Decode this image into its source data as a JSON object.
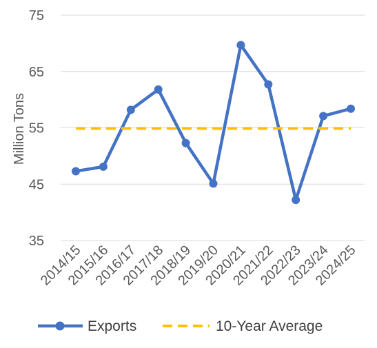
{
  "chart_data": {
    "type": "line",
    "title": "",
    "xlabel": "",
    "ylabel": "Million Tons",
    "ylim": [
      35,
      75
    ],
    "yticks": [
      35,
      45,
      55,
      65,
      75
    ],
    "grid": true,
    "legend_position": "bottom",
    "categories": [
      "2014/15",
      "2015/16",
      "2016/17",
      "2017/18",
      "2018/19",
      "2019/20",
      "2020/21",
      "2021/22",
      "2022/23",
      "2023/24",
      "2024/25"
    ],
    "series": [
      {
        "name": "Exports",
        "style": "solid-line-with-markers",
        "color": "#4472C4",
        "values": [
          47.3,
          48.1,
          58.2,
          61.8,
          52.3,
          45.1,
          69.7,
          62.7,
          42.2,
          57.1,
          58.4
        ]
      },
      {
        "name": "10-Year Average",
        "style": "dashed-line",
        "color": "#FFC000",
        "values": [
          54.9,
          54.9,
          54.9,
          54.9,
          54.9,
          54.9,
          54.9,
          54.9,
          54.9,
          54.9,
          54.9
        ]
      }
    ]
  }
}
